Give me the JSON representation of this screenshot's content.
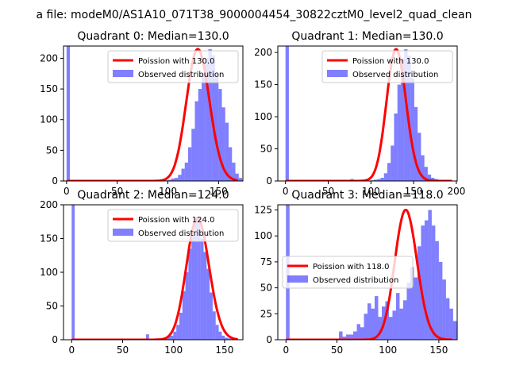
{
  "suptitle": "a file: modeM0/AS1A10_071T38_9000004454_30822cztM0_level2_quad_clean",
  "colors": {
    "bars": "#0000ff",
    "curve": "#ff0000",
    "axes": "#000000",
    "background": "#ffffff"
  },
  "chart_data": [
    {
      "type": "bar",
      "title": "Quadrant 0: Median=130.0",
      "median": 130.0,
      "xlim": [
        -3,
        174
      ],
      "ylim": [
        0,
        220
      ],
      "xticks": [
        0,
        50,
        100,
        150
      ],
      "yticks": [
        0,
        50,
        100,
        150,
        200
      ],
      "legend": {
        "position": "top-right",
        "curve_label": "Poission with 130.0",
        "bars_label": "Observed distribution"
      },
      "bin_start": 80,
      "bin_width": 3.33,
      "zero_bar": 220,
      "histogram": [
        0,
        1,
        0,
        0,
        1,
        1,
        2,
        4,
        5,
        10,
        20,
        30,
        55,
        85,
        130,
        150,
        175,
        200,
        215,
        205,
        175,
        150,
        120,
        95,
        55,
        30,
        12,
        5,
        2,
        1,
        0,
        0
      ]
    },
    {
      "type": "bar",
      "title": "Quadrant 1: Median=130.0",
      "median": 130.0,
      "xlim": [
        -9,
        201
      ],
      "ylim": [
        0,
        210
      ],
      "xticks": [
        0,
        50,
        100,
        150,
        200
      ],
      "yticks": [
        0,
        50,
        100,
        150,
        200
      ],
      "legend": {
        "position": "top-right",
        "curve_label": "Poission with 130.0",
        "bars_label": "Observed distribution"
      },
      "bin_start": 68,
      "bin_width": 3.94,
      "zero_bar": 210,
      "histogram": [
        0,
        0,
        3,
        0,
        1,
        0,
        2,
        0,
        1,
        2,
        3,
        5,
        12,
        28,
        55,
        105,
        150,
        190,
        205,
        195,
        160,
        115,
        75,
        40,
        22,
        10,
        5,
        3,
        2,
        1,
        0,
        0
      ]
    },
    {
      "type": "bar",
      "title": "Quadrant 2: Median=124.0",
      "median": 124.0,
      "xlim": [
        -8,
        168
      ],
      "ylim": [
        0,
        200
      ],
      "xticks": [
        0,
        50,
        100,
        150
      ],
      "yticks": [
        0,
        50,
        100,
        150,
        200
      ],
      "legend": {
        "position": "top-right",
        "curve_label": "Poission with 124.0",
        "bars_label": "Observed distribution"
      },
      "bin_start": 73,
      "bin_width": 2.97,
      "zero_bar": 200,
      "histogram": [
        8,
        0,
        0,
        2,
        2,
        0,
        3,
        5,
        6,
        12,
        22,
        40,
        72,
        100,
        135,
        155,
        180,
        175,
        150,
        130,
        105,
        70,
        42,
        22,
        12,
        6,
        3,
        2,
        1,
        0
      ]
    },
    {
      "type": "bar",
      "title": "Quadrant 3: Median=118.0",
      "median": 118.0,
      "xlim": [
        -8,
        168
      ],
      "ylim": [
        0,
        130
      ],
      "xticks": [
        0,
        50,
        100,
        150
      ],
      "yticks": [
        0,
        25,
        50,
        75,
        100,
        125
      ],
      "legend": {
        "position": "center-left",
        "curve_label": "Poission with 118.0",
        "bars_label": "Observed distribution"
      },
      "bin_start": 52,
      "bin_width": 3.5,
      "zero_bar": 130,
      "histogram": [
        8,
        3,
        5,
        5,
        8,
        15,
        12,
        25,
        35,
        30,
        42,
        22,
        32,
        37,
        22,
        28,
        45,
        30,
        38,
        55,
        70,
        60,
        90,
        110,
        115,
        125,
        110,
        95,
        75,
        58,
        40,
        30,
        18,
        12,
        8
      ]
    }
  ]
}
